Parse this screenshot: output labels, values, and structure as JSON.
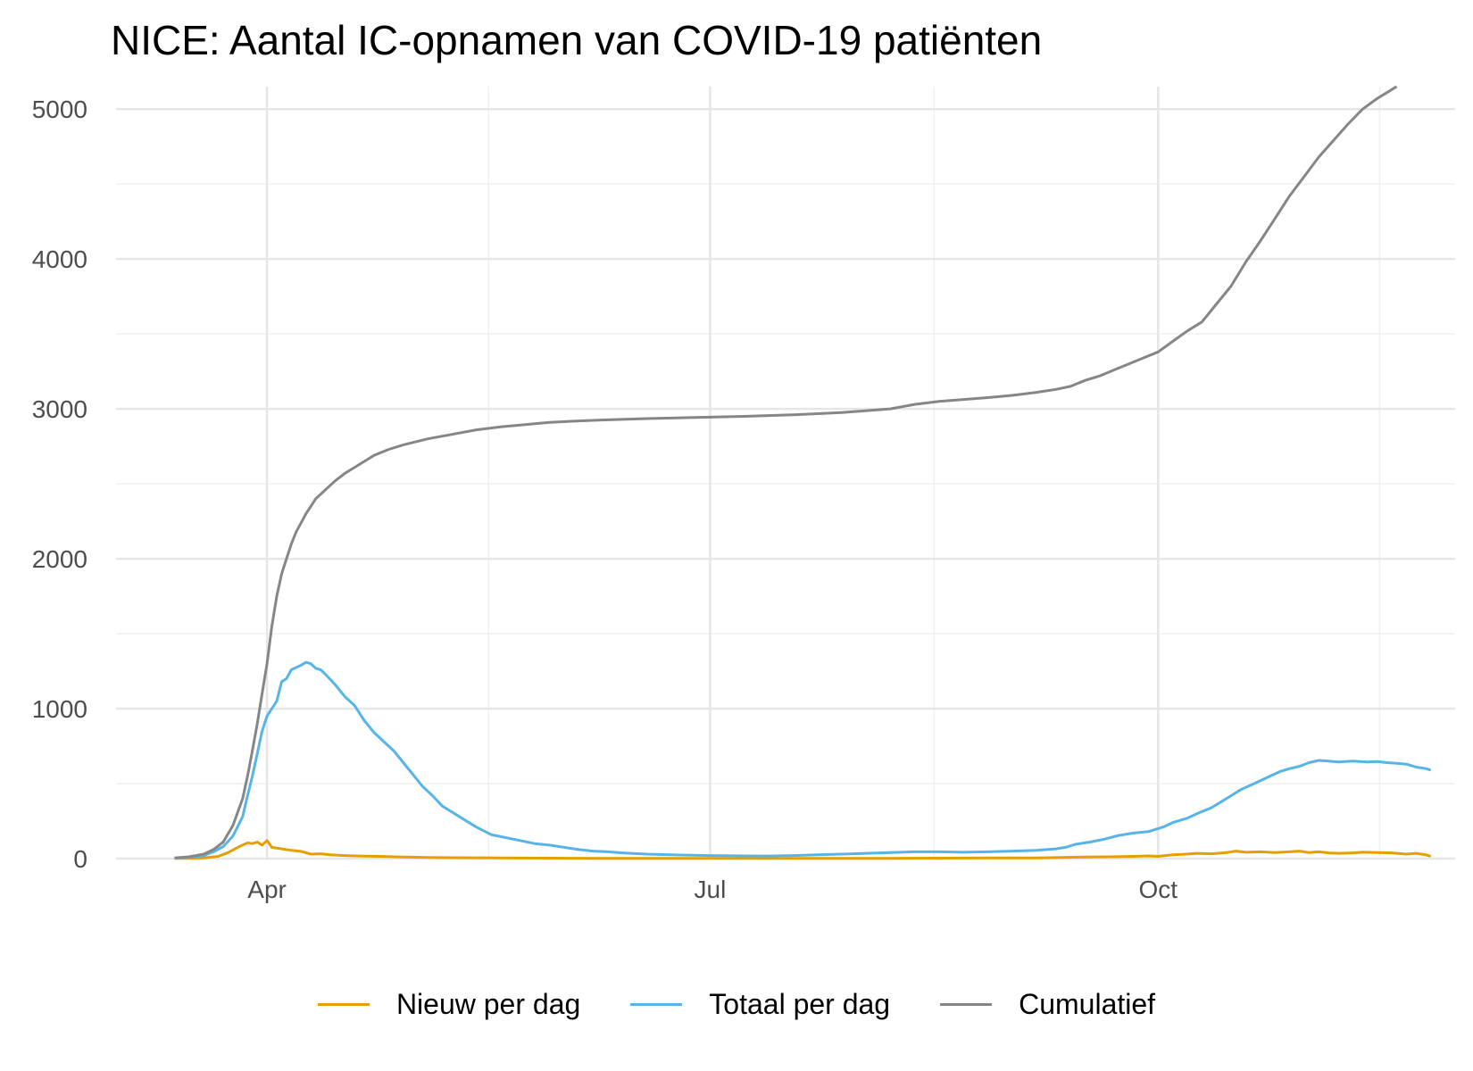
{
  "chart_data": {
    "type": "line",
    "title": "NICE: Aantal IC-opnamen van COVID-19 patiënten",
    "xlabel": "",
    "ylabel": "",
    "x_unit": "day of 2020 (1 = Jan 1)",
    "xlim": [
      61,
      336
    ],
    "ylim": [
      0,
      5150
    ],
    "y_ticks": [
      0,
      1000,
      2000,
      3000,
      4000,
      5000
    ],
    "y_tick_labels": [
      "0",
      "1000",
      "2000",
      "3000",
      "4000",
      "5000"
    ],
    "x_ticks": [
      {
        "label": "Apr",
        "day": 92
      },
      {
        "label": "Jul",
        "day": 183
      },
      {
        "label": "Oct",
        "day": 275
      }
    ],
    "grid": true,
    "legend_position": "bottom",
    "series": [
      {
        "name": "Nieuw per dag",
        "color": "#E69F00",
        "points": [
          [
            73,
            1
          ],
          [
            76,
            2
          ],
          [
            79,
            4
          ],
          [
            82,
            15
          ],
          [
            84,
            40
          ],
          [
            86,
            75
          ],
          [
            88,
            105
          ],
          [
            89,
            100
          ],
          [
            90,
            110
          ],
          [
            91,
            90
          ],
          [
            92,
            120
          ],
          [
            93,
            75
          ],
          [
            95,
            65
          ],
          [
            97,
            55
          ],
          [
            99,
            48
          ],
          [
            101,
            30
          ],
          [
            103,
            32
          ],
          [
            105,
            25
          ],
          [
            108,
            20
          ],
          [
            111,
            17
          ],
          [
            115,
            15
          ],
          [
            120,
            10
          ],
          [
            125,
            7
          ],
          [
            130,
            6
          ],
          [
            140,
            4
          ],
          [
            150,
            3
          ],
          [
            160,
            2
          ],
          [
            170,
            2
          ],
          [
            183,
            1
          ],
          [
            190,
            1
          ],
          [
            200,
            1
          ],
          [
            210,
            1
          ],
          [
            220,
            2
          ],
          [
            230,
            3
          ],
          [
            240,
            4
          ],
          [
            250,
            5
          ],
          [
            260,
            10
          ],
          [
            265,
            12
          ],
          [
            270,
            15
          ],
          [
            273,
            18
          ],
          [
            275,
            15
          ],
          [
            278,
            25
          ],
          [
            280,
            28
          ],
          [
            283,
            35
          ],
          [
            286,
            32
          ],
          [
            289,
            40
          ],
          [
            291,
            50
          ],
          [
            293,
            42
          ],
          [
            296,
            45
          ],
          [
            299,
            40
          ],
          [
            302,
            45
          ],
          [
            304,
            50
          ],
          [
            306,
            40
          ],
          [
            308,
            45
          ],
          [
            310,
            38
          ],
          [
            312,
            35
          ],
          [
            315,
            38
          ],
          [
            317,
            42
          ],
          [
            320,
            40
          ],
          [
            323,
            38
          ],
          [
            326,
            30
          ],
          [
            328,
            35
          ],
          [
            330,
            25
          ],
          [
            331,
            15
          ]
        ]
      },
      {
        "name": "Totaal per dag",
        "color": "#56B4E9",
        "points": [
          [
            73,
            3
          ],
          [
            76,
            8
          ],
          [
            79,
            20
          ],
          [
            81,
            45
          ],
          [
            83,
            80
          ],
          [
            85,
            150
          ],
          [
            87,
            280
          ],
          [
            88,
            420
          ],
          [
            89,
            550
          ],
          [
            90,
            700
          ],
          [
            91,
            850
          ],
          [
            92,
            950
          ],
          [
            93,
            1000
          ],
          [
            94,
            1050
          ],
          [
            95,
            1180
          ],
          [
            96,
            1200
          ],
          [
            97,
            1260
          ],
          [
            99,
            1290
          ],
          [
            100,
            1310
          ],
          [
            101,
            1300
          ],
          [
            102,
            1270
          ],
          [
            103,
            1260
          ],
          [
            104,
            1230
          ],
          [
            106,
            1160
          ],
          [
            108,
            1080
          ],
          [
            110,
            1020
          ],
          [
            112,
            920
          ],
          [
            114,
            840
          ],
          [
            116,
            780
          ],
          [
            118,
            720
          ],
          [
            120,
            640
          ],
          [
            122,
            560
          ],
          [
            124,
            480
          ],
          [
            126,
            420
          ],
          [
            128,
            350
          ],
          [
            130,
            310
          ],
          [
            132,
            270
          ],
          [
            135,
            210
          ],
          [
            138,
            160
          ],
          [
            141,
            140
          ],
          [
            144,
            120
          ],
          [
            147,
            100
          ],
          [
            150,
            90
          ],
          [
            153,
            75
          ],
          [
            156,
            60
          ],
          [
            159,
            50
          ],
          [
            162,
            45
          ],
          [
            165,
            38
          ],
          [
            170,
            30
          ],
          [
            175,
            25
          ],
          [
            183,
            20
          ],
          [
            190,
            18
          ],
          [
            195,
            17
          ],
          [
            200,
            20
          ],
          [
            205,
            25
          ],
          [
            210,
            30
          ],
          [
            215,
            35
          ],
          [
            220,
            40
          ],
          [
            225,
            45
          ],
          [
            230,
            45
          ],
          [
            235,
            42
          ],
          [
            240,
            45
          ],
          [
            245,
            50
          ],
          [
            250,
            55
          ],
          [
            254,
            65
          ],
          [
            256,
            75
          ],
          [
            258,
            95
          ],
          [
            261,
            110
          ],
          [
            264,
            130
          ],
          [
            267,
            155
          ],
          [
            270,
            170
          ],
          [
            273,
            180
          ],
          [
            276,
            210
          ],
          [
            278,
            240
          ],
          [
            281,
            270
          ],
          [
            283,
            300
          ],
          [
            286,
            340
          ],
          [
            288,
            380
          ],
          [
            290,
            420
          ],
          [
            292,
            460
          ],
          [
            294,
            490
          ],
          [
            296,
            520
          ],
          [
            298,
            550
          ],
          [
            300,
            580
          ],
          [
            302,
            600
          ],
          [
            304,
            615
          ],
          [
            306,
            640
          ],
          [
            308,
            655
          ],
          [
            310,
            650
          ],
          [
            312,
            645
          ],
          [
            315,
            650
          ],
          [
            318,
            645
          ],
          [
            320,
            648
          ],
          [
            322,
            640
          ],
          [
            324,
            635
          ],
          [
            326,
            630
          ],
          [
            328,
            610
          ],
          [
            330,
            600
          ],
          [
            331,
            590
          ]
        ]
      },
      {
        "name": "Cumulatief",
        "color": "#868686",
        "points": [
          [
            73,
            4
          ],
          [
            76,
            12
          ],
          [
            79,
            30
          ],
          [
            81,
            60
          ],
          [
            83,
            110
          ],
          [
            85,
            220
          ],
          [
            87,
            400
          ],
          [
            88,
            550
          ],
          [
            89,
            720
          ],
          [
            90,
            900
          ],
          [
            91,
            1100
          ],
          [
            92,
            1300
          ],
          [
            93,
            1550
          ],
          [
            94,
            1750
          ],
          [
            95,
            1900
          ],
          [
            96,
            2000
          ],
          [
            97,
            2100
          ],
          [
            98,
            2180
          ],
          [
            99,
            2240
          ],
          [
            100,
            2300
          ],
          [
            101,
            2350
          ],
          [
            102,
            2400
          ],
          [
            104,
            2460
          ],
          [
            106,
            2520
          ],
          [
            108,
            2570
          ],
          [
            110,
            2610
          ],
          [
            112,
            2650
          ],
          [
            114,
            2690
          ],
          [
            117,
            2730
          ],
          [
            120,
            2760
          ],
          [
            125,
            2800
          ],
          [
            130,
            2830
          ],
          [
            135,
            2860
          ],
          [
            140,
            2880
          ],
          [
            145,
            2895
          ],
          [
            150,
            2910
          ],
          [
            155,
            2918
          ],
          [
            160,
            2925
          ],
          [
            170,
            2935
          ],
          [
            183,
            2945
          ],
          [
            190,
            2950
          ],
          [
            200,
            2960
          ],
          [
            210,
            2975
          ],
          [
            220,
            3000
          ],
          [
            225,
            3030
          ],
          [
            230,
            3050
          ],
          [
            240,
            3075
          ],
          [
            245,
            3090
          ],
          [
            250,
            3110
          ],
          [
            254,
            3130
          ],
          [
            257,
            3150
          ],
          [
            260,
            3190
          ],
          [
            263,
            3220
          ],
          [
            266,
            3260
          ],
          [
            269,
            3300
          ],
          [
            272,
            3340
          ],
          [
            275,
            3380
          ],
          [
            278,
            3450
          ],
          [
            281,
            3520
          ],
          [
            284,
            3580
          ],
          [
            287,
            3700
          ],
          [
            290,
            3820
          ],
          [
            293,
            3980
          ],
          [
            296,
            4120
          ],
          [
            299,
            4270
          ],
          [
            302,
            4420
          ],
          [
            305,
            4550
          ],
          [
            308,
            4680
          ],
          [
            311,
            4790
          ],
          [
            314,
            4900
          ],
          [
            317,
            5000
          ],
          [
            320,
            5070
          ],
          [
            322,
            5110
          ],
          [
            324,
            5150
          ]
        ]
      }
    ]
  }
}
